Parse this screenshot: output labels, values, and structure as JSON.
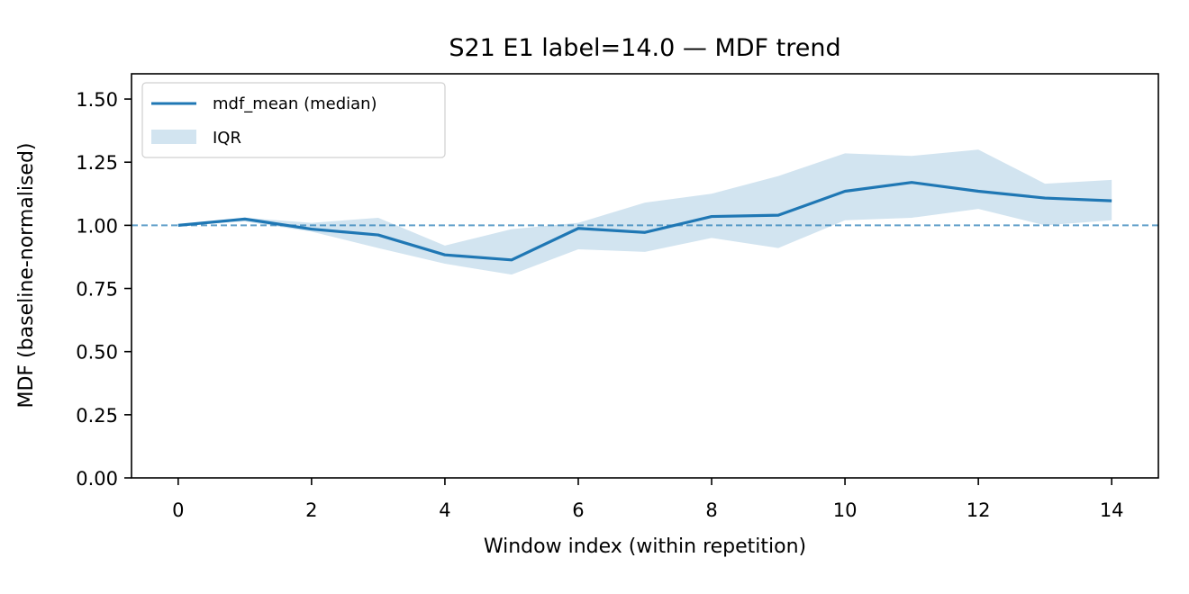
{
  "chart_data": {
    "type": "line",
    "title": "S21 E1 label=14.0 — MDF trend",
    "xlabel": "Window index (within repetition)",
    "ylabel": "MDF (baseline-normalised)",
    "xlim": [
      -0.7,
      14.7
    ],
    "ylim": [
      0,
      1.6
    ],
    "xticks": [
      0,
      2,
      4,
      6,
      8,
      10,
      12,
      14
    ],
    "xtick_labels": [
      "0",
      "2",
      "4",
      "6",
      "8",
      "10",
      "12",
      "14"
    ],
    "yticks": [
      0,
      0.25,
      0.5,
      0.75,
      1.0,
      1.25,
      1.5
    ],
    "ytick_labels": [
      "0.00",
      "0.25",
      "0.50",
      "0.75",
      "1.00",
      "1.25",
      "1.50"
    ],
    "x": [
      0,
      1,
      2,
      3,
      4,
      5,
      6,
      7,
      8,
      9,
      10,
      11,
      12,
      13,
      14
    ],
    "series": [
      {
        "name": "mdf_mean (median)",
        "values": [
          1.0,
          1.025,
          0.985,
          0.962,
          0.883,
          0.863,
          0.988,
          0.972,
          1.035,
          1.04,
          1.135,
          1.17,
          1.135,
          1.108,
          1.097
        ]
      }
    ],
    "band": {
      "name": "IQR",
      "lower": [
        1.0,
        1.015,
        0.975,
        0.91,
        0.848,
        0.805,
        0.905,
        0.895,
        0.95,
        0.91,
        1.02,
        1.03,
        1.065,
        1.0,
        1.02
      ],
      "upper": [
        1.0,
        1.03,
        1.01,
        1.03,
        0.92,
        0.985,
        1.01,
        1.09,
        1.125,
        1.195,
        1.285,
        1.275,
        1.3,
        1.165,
        1.18
      ]
    },
    "reference_line": {
      "y": 1.0,
      "style": "dashed"
    },
    "legend": {
      "position": "top-left"
    },
    "grid": false,
    "colors": {
      "line": "#1f77b4",
      "band": "#1f77b4",
      "band_opacity": 0.2,
      "reference": "#1f77b4"
    }
  }
}
